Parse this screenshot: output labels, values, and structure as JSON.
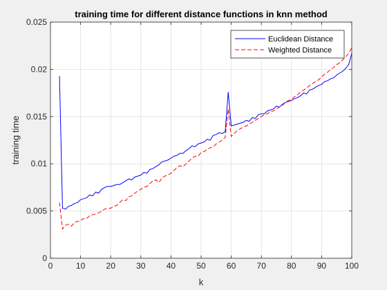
{
  "chart_data": {
    "type": "line",
    "title": "training time for different distance functions in knn method",
    "xlabel": "k",
    "ylabel": "training time",
    "xlim": [
      0,
      100
    ],
    "ylim": [
      0,
      0.025
    ],
    "xticks": [
      0,
      10,
      20,
      30,
      40,
      50,
      60,
      70,
      80,
      90,
      100
    ],
    "yticks": [
      0,
      0.005,
      0.01,
      0.015,
      0.02,
      0.025
    ],
    "ytick_labels": [
      "0",
      "0.005",
      "0.01",
      "0.015",
      "0.02",
      "0.025"
    ],
    "grid": true,
    "legend_position": "top-right",
    "x": [
      3,
      4,
      5,
      6,
      7,
      8,
      9,
      10,
      11,
      12,
      13,
      14,
      15,
      16,
      17,
      18,
      19,
      20,
      21,
      22,
      23,
      24,
      25,
      26,
      27,
      28,
      29,
      30,
      31,
      32,
      33,
      34,
      35,
      36,
      37,
      38,
      39,
      40,
      41,
      42,
      43,
      44,
      45,
      46,
      47,
      48,
      49,
      50,
      51,
      52,
      53,
      54,
      55,
      56,
      57,
      58,
      59,
      60,
      61,
      62,
      63,
      64,
      65,
      66,
      67,
      68,
      69,
      70,
      71,
      72,
      73,
      74,
      75,
      76,
      77,
      78,
      79,
      80,
      81,
      82,
      83,
      84,
      85,
      86,
      87,
      88,
      89,
      90,
      91,
      92,
      93,
      94,
      95,
      96,
      97,
      98,
      99,
      100
    ],
    "series": [
      {
        "name": "Euclidean Distance",
        "color": "#0000ff",
        "dash": "solid",
        "values": [
          0.0193,
          0.0053,
          0.0052,
          0.0055,
          0.0056,
          0.0058,
          0.0059,
          0.0062,
          0.0063,
          0.0064,
          0.0067,
          0.0066,
          0.007,
          0.0069,
          0.0073,
          0.0075,
          0.0076,
          0.0076,
          0.0077,
          0.0078,
          0.0078,
          0.008,
          0.0082,
          0.0084,
          0.0083,
          0.0086,
          0.0087,
          0.0088,
          0.0091,
          0.009,
          0.0094,
          0.0095,
          0.0097,
          0.0099,
          0.0102,
          0.0103,
          0.0104,
          0.0106,
          0.0108,
          0.0109,
          0.0111,
          0.0111,
          0.0114,
          0.0116,
          0.0119,
          0.0118,
          0.0121,
          0.0122,
          0.0123,
          0.0126,
          0.0125,
          0.013,
          0.0131,
          0.0133,
          0.0132,
          0.0134,
          0.0176,
          0.014,
          0.0141,
          0.0142,
          0.0143,
          0.0144,
          0.0146,
          0.0145,
          0.0149,
          0.0148,
          0.0152,
          0.0153,
          0.0153,
          0.0156,
          0.0157,
          0.0158,
          0.0161,
          0.016,
          0.0163,
          0.0165,
          0.0166,
          0.0167,
          0.0169,
          0.017,
          0.0172,
          0.0175,
          0.0174,
          0.0178,
          0.0179,
          0.0181,
          0.0183,
          0.0184,
          0.0187,
          0.0188,
          0.019,
          0.0191,
          0.0194,
          0.0196,
          0.0198,
          0.0201,
          0.0205,
          0.0217
        ]
      },
      {
        "name": "Weighted Distance",
        "color": "#ff0000",
        "dash": "dashed",
        "values": [
          0.0059,
          0.0031,
          0.0035,
          0.0036,
          0.0034,
          0.0038,
          0.0039,
          0.004,
          0.0042,
          0.0042,
          0.0045,
          0.0046,
          0.0047,
          0.0048,
          0.005,
          0.0052,
          0.0053,
          0.0053,
          0.0055,
          0.0056,
          0.0059,
          0.0062,
          0.0061,
          0.0065,
          0.0066,
          0.0069,
          0.0071,
          0.0073,
          0.0075,
          0.0076,
          0.0079,
          0.0082,
          0.0083,
          0.008,
          0.0085,
          0.0087,
          0.0088,
          0.009,
          0.0093,
          0.0096,
          0.0098,
          0.0097,
          0.01,
          0.0103,
          0.0106,
          0.0108,
          0.0108,
          0.0112,
          0.0113,
          0.0115,
          0.0117,
          0.0118,
          0.0121,
          0.0123,
          0.0125,
          0.0128,
          0.0158,
          0.0129,
          0.0132,
          0.0135,
          0.0137,
          0.0139,
          0.014,
          0.0142,
          0.0144,
          0.0146,
          0.0148,
          0.015,
          0.0152,
          0.0153,
          0.0155,
          0.0156,
          0.0158,
          0.016,
          0.0162,
          0.0165,
          0.0167,
          0.0168,
          0.0171,
          0.0173,
          0.0176,
          0.0178,
          0.018,
          0.0183,
          0.0185,
          0.0187,
          0.0189,
          0.0192,
          0.0195,
          0.0197,
          0.02,
          0.0202,
          0.0205,
          0.0207,
          0.021,
          0.0213,
          0.0217,
          0.0223
        ]
      }
    ]
  }
}
